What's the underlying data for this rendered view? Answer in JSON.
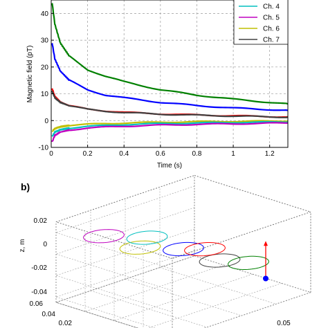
{
  "chart_data": [
    {
      "type": "line",
      "panel_label": "",
      "xlabel": "Time (s)",
      "ylabel": "Magnetic field (pT)",
      "xlim": [
        0,
        1.3
      ],
      "ylim": [
        -10,
        45
      ],
      "xticks": [
        0,
        0.2,
        0.4,
        0.6,
        0.8,
        1,
        1.2
      ],
      "xtick_labels": [
        "0",
        "0.2",
        "0.4",
        "0.6",
        "0.8",
        "1",
        "1.2"
      ],
      "yticks": [
        -10,
        0,
        10,
        20,
        30,
        40
      ],
      "ytick_labels": [
        "-10",
        "0",
        "10",
        "20",
        "30",
        "40"
      ],
      "grid": true,
      "legend_position": "top-right",
      "legend": [
        {
          "name": "Ch. 4",
          "color": "#00bfbf"
        },
        {
          "name": "Ch. 5",
          "color": "#bf00bf"
        },
        {
          "name": "Ch. 6",
          "color": "#bfbf00"
        },
        {
          "name": "Ch. 7",
          "color": "#404040"
        }
      ],
      "series": [
        {
          "color": "#008000",
          "x": [
            0.005,
            0.02,
            0.05,
            0.1,
            0.2,
            0.3,
            0.4,
            0.6,
            0.8,
            1.0,
            1.2,
            1.3
          ],
          "y": [
            44,
            36,
            29,
            24,
            19,
            16.5,
            14.5,
            11.5,
            9.5,
            8,
            6.8,
            6.2
          ]
        },
        {
          "color": "#0000ff",
          "x": [
            0.005,
            0.02,
            0.05,
            0.1,
            0.2,
            0.3,
            0.4,
            0.6,
            0.8,
            1.0,
            1.2,
            1.3
          ],
          "y": [
            29,
            23,
            18.5,
            15,
            11.5,
            9.5,
            8.5,
            6.8,
            5.6,
            4.7,
            4.1,
            3.8
          ]
        },
        {
          "color": "#ff0000",
          "x": [
            0.005,
            0.02,
            0.05,
            0.1,
            0.2,
            0.3,
            0.4,
            0.6,
            0.8,
            1.0,
            1.2,
            1.3
          ],
          "y": [
            12,
            9,
            7,
            5.5,
            4.3,
            3.6,
            3.1,
            2.5,
            2.1,
            1.8,
            1.5,
            1.4
          ]
        },
        {
          "name": "Ch. 7",
          "color": "#404040",
          "x": [
            0.005,
            0.02,
            0.05,
            0.1,
            0.2,
            0.3,
            0.4,
            0.6,
            0.8,
            1.0,
            1.2,
            1.3
          ],
          "y": [
            11,
            8.5,
            6.8,
            5.5,
            4.2,
            3.5,
            3.0,
            2.4,
            2.0,
            1.7,
            1.4,
            1.3
          ]
        },
        {
          "name": "Ch. 6",
          "color": "#bfbf00",
          "x": [
            0.005,
            0.02,
            0.05,
            0.1,
            0.2,
            0.3,
            0.4,
            0.6,
            0.8,
            1.0,
            1.2,
            1.3
          ],
          "y": [
            -4,
            -3,
            -2.3,
            -1.8,
            -1.4,
            -1.1,
            -0.9,
            -0.6,
            -0.4,
            -0.3,
            -0.2,
            -0.1
          ]
        },
        {
          "name": "Ch. 4",
          "color": "#00bfbf",
          "x": [
            0.005,
            0.02,
            0.05,
            0.1,
            0.2,
            0.3,
            0.4,
            0.6,
            0.8,
            1.0,
            1.2,
            1.3
          ],
          "y": [
            -6,
            -4.3,
            -3.4,
            -2.8,
            -2.2,
            -1.8,
            -1.5,
            -1.1,
            -0.9,
            -0.7,
            -0.6,
            -0.5
          ]
        },
        {
          "name": "Ch. 5",
          "color": "#bf00bf",
          "x": [
            0.005,
            0.02,
            0.05,
            0.1,
            0.2,
            0.3,
            0.4,
            0.6,
            0.8,
            1.0,
            1.2,
            1.3
          ],
          "y": [
            -8,
            -5.5,
            -4.3,
            -3.5,
            -2.8,
            -2.4,
            -2.1,
            -1.7,
            -1.4,
            -1.2,
            -1.0,
            -0.9
          ]
        }
      ]
    },
    {
      "type": "scatter",
      "panel_label": "b)",
      "zlabel": "z, m",
      "zticks": [
        0.02,
        0,
        -0.02,
        -0.04
      ],
      "ztick_labels": [
        "0.02",
        "0",
        "-0.02",
        "-0.04"
      ],
      "yticks": [
        0.06,
        0.04,
        0.02
      ],
      "ytick_labels": [
        "0.06",
        "0.04",
        "0.02"
      ],
      "xtick_labels": [
        "0.05"
      ],
      "grid": true,
      "coils": [
        {
          "color": "#bf00bf",
          "center": [
            -0.05,
            0.05,
            0.015
          ],
          "radius": 0.018
        },
        {
          "color": "#bfbf00",
          "center": [
            0.0,
            0.05,
            0.015
          ],
          "radius": 0.018
        },
        {
          "color": "#00bfbf",
          "center": [
            -0.05,
            0.0,
            0.0
          ],
          "radius": 0.018
        },
        {
          "color": "#0000ff",
          "center": [
            0.0,
            0.0,
            0.0
          ],
          "radius": 0.018
        },
        {
          "color": "#404040",
          "center": [
            0.05,
            0.0,
            0.0
          ],
          "radius": 0.018
        },
        {
          "color": "#ff0000",
          "center": [
            -0.03,
            -0.05,
            -0.02
          ],
          "radius": 0.018
        },
        {
          "color": "#008000",
          "center": [
            0.03,
            -0.05,
            -0.02
          ],
          "radius": 0.018
        }
      ],
      "source_marker": {
        "color": "#0000ff"
      },
      "dipole_arrow": {
        "color": "#ff0000"
      }
    }
  ]
}
